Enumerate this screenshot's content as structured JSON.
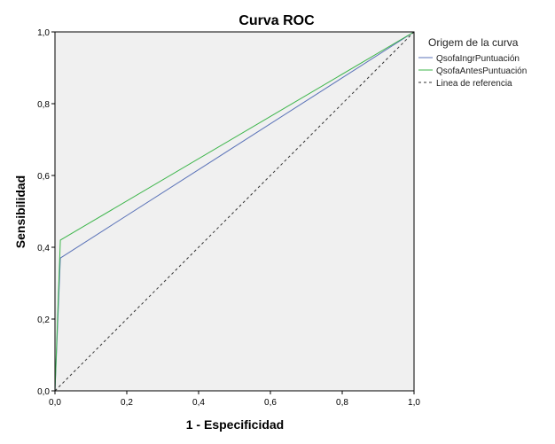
{
  "chart_data": {
    "type": "line",
    "title": "Curva ROC",
    "xlabel": "1 - Especificidad",
    "ylabel": "Sensibilidad",
    "xlim": [
      0,
      1
    ],
    "ylim": [
      0,
      1
    ],
    "x_ticks": [
      0,
      0.2,
      0.4,
      0.6,
      0.8,
      1
    ],
    "y_ticks": [
      0,
      0.2,
      0.4,
      0.6,
      0.8,
      1
    ],
    "x_tick_labels": [
      "0,0",
      "0,2",
      "0,4",
      "0,6",
      "0,8",
      "1,0"
    ],
    "y_tick_labels": [
      "0,0",
      "0,2",
      "0,4",
      "0,6",
      "0,8",
      "1,0"
    ],
    "grid": false,
    "plot_background": "#f0f0f0",
    "legend": {
      "title": "Origem de la curva",
      "placement": "right"
    },
    "series": [
      {
        "name": "QsofaIngrPuntuación",
        "color": "#5b73b8",
        "dash": "solid",
        "x": [
          0,
          0.015,
          1
        ],
        "y": [
          0,
          0.37,
          1
        ]
      },
      {
        "name": "QsofaAntesPuntuación",
        "color": "#3cb54a",
        "dash": "solid",
        "x": [
          0,
          0.015,
          1
        ],
        "y": [
          0,
          0.42,
          1
        ]
      },
      {
        "name": "Linea de referencia",
        "color": "#333333",
        "dash": "dashed",
        "x": [
          0,
          1
        ],
        "y": [
          0,
          1
        ]
      }
    ]
  }
}
